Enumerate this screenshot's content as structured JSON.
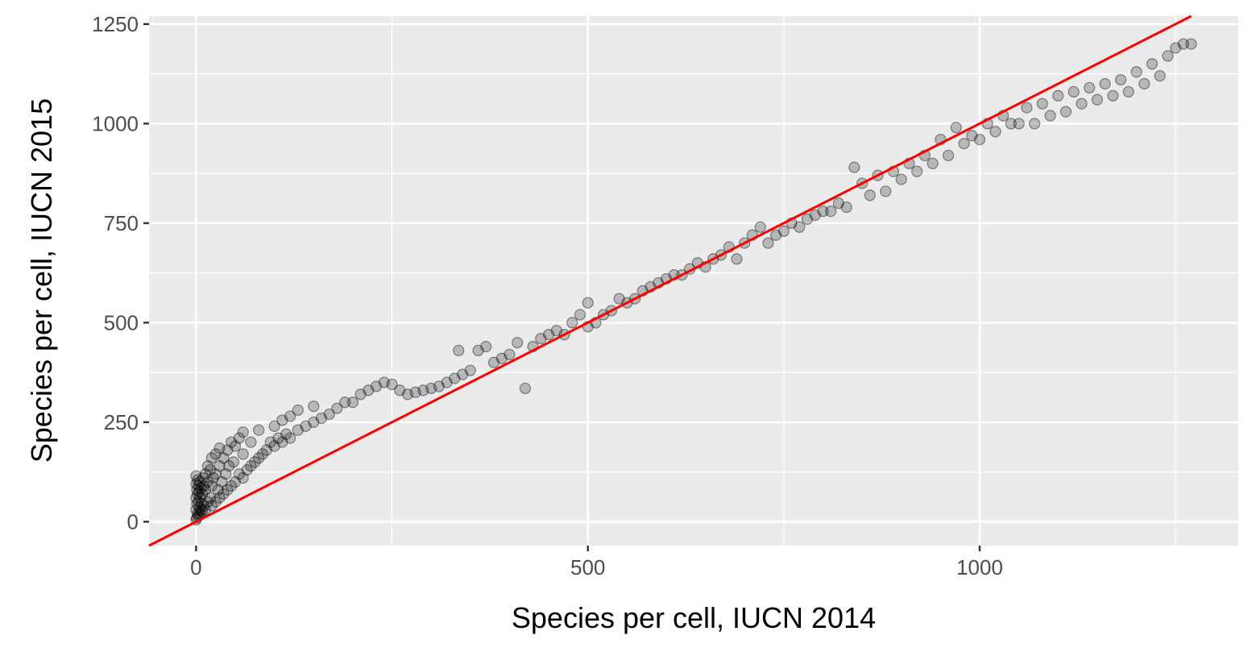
{
  "chart_data": {
    "type": "scatter",
    "title": "",
    "xlabel": "Species per cell, IUCN 2014",
    "ylabel": "Species per cell, IUCN 2015",
    "xlim": [
      -60,
      1330
    ],
    "ylim": [
      -60,
      1270
    ],
    "x_ticks": [
      0,
      500,
      1000
    ],
    "x_tick_labels": [
      "0",
      "500",
      "1000"
    ],
    "y_ticks": [
      0,
      250,
      500,
      750,
      1000,
      1250
    ],
    "y_tick_labels": [
      "0",
      "250",
      "500",
      "750",
      "1000",
      "1250"
    ],
    "grid": true,
    "legend": "none",
    "point_color": "#000000",
    "point_alpha": 0.22,
    "panel_background": "#ebebeb",
    "reference_line": {
      "type": "identity",
      "slope": 1,
      "intercept": 0,
      "color": "#ff0000"
    },
    "series": [
      {
        "points": [
          [
            0,
            5
          ],
          [
            0,
            30
          ],
          [
            0,
            60
          ],
          [
            0,
            95
          ],
          [
            0,
            115
          ],
          [
            1,
            10
          ],
          [
            1,
            45
          ],
          [
            1,
            80
          ],
          [
            2,
            20
          ],
          [
            2,
            70
          ],
          [
            2,
            105
          ],
          [
            3,
            15
          ],
          [
            3,
            50
          ],
          [
            3,
            90
          ],
          [
            4,
            35
          ],
          [
            4,
            75
          ],
          [
            5,
            20
          ],
          [
            5,
            60
          ],
          [
            5,
            100
          ],
          [
            6,
            30
          ],
          [
            6,
            85
          ],
          [
            7,
            45
          ],
          [
            8,
            25
          ],
          [
            8,
            70
          ],
          [
            9,
            110
          ],
          [
            10,
            40
          ],
          [
            10,
            90
          ],
          [
            12,
            30
          ],
          [
            12,
            80
          ],
          [
            12,
            120
          ],
          [
            15,
            50
          ],
          [
            15,
            100
          ],
          [
            15,
            140
          ],
          [
            18,
            60
          ],
          [
            18,
            130
          ],
          [
            20,
            40
          ],
          [
            20,
            90
          ],
          [
            20,
            160
          ],
          [
            22,
            110
          ],
          [
            25,
            50
          ],
          [
            25,
            120
          ],
          [
            25,
            170
          ],
          [
            28,
            80
          ],
          [
            30,
            60
          ],
          [
            30,
            140
          ],
          [
            30,
            185
          ],
          [
            33,
            100
          ],
          [
            35,
            70
          ],
          [
            35,
            160
          ],
          [
            38,
            120
          ],
          [
            40,
            80
          ],
          [
            40,
            180
          ],
          [
            42,
            140
          ],
          [
            45,
            90
          ],
          [
            45,
            200
          ],
          [
            48,
            150
          ],
          [
            50,
            100
          ],
          [
            50,
            190
          ],
          [
            55,
            120
          ],
          [
            55,
            210
          ],
          [
            60,
            110
          ],
          [
            60,
            170
          ],
          [
            60,
            225
          ],
          [
            65,
            130
          ],
          [
            70,
            140
          ],
          [
            70,
            200
          ],
          [
            75,
            150
          ],
          [
            80,
            160
          ],
          [
            80,
            230
          ],
          [
            85,
            170
          ],
          [
            90,
            180
          ],
          [
            95,
            200
          ],
          [
            100,
            190
          ],
          [
            100,
            240
          ],
          [
            105,
            210
          ],
          [
            110,
            200
          ],
          [
            110,
            255
          ],
          [
            115,
            220
          ],
          [
            120,
            210
          ],
          [
            120,
            265
          ],
          [
            130,
            230
          ],
          [
            130,
            280
          ],
          [
            140,
            240
          ],
          [
            150,
            250
          ],
          [
            150,
            290
          ],
          [
            160,
            260
          ],
          [
            170,
            270
          ],
          [
            180,
            285
          ],
          [
            190,
            300
          ],
          [
            200,
            300
          ],
          [
            210,
            320
          ],
          [
            220,
            330
          ],
          [
            230,
            340
          ],
          [
            240,
            350
          ],
          [
            250,
            345
          ],
          [
            260,
            330
          ],
          [
            270,
            320
          ],
          [
            280,
            325
          ],
          [
            290,
            330
          ],
          [
            300,
            335
          ],
          [
            310,
            340
          ],
          [
            320,
            350
          ],
          [
            330,
            360
          ],
          [
            335,
            430
          ],
          [
            340,
            370
          ],
          [
            350,
            380
          ],
          [
            360,
            430
          ],
          [
            370,
            440
          ],
          [
            380,
            400
          ],
          [
            390,
            410
          ],
          [
            400,
            420
          ],
          [
            410,
            450
          ],
          [
            420,
            335
          ],
          [
            430,
            440
          ],
          [
            440,
            460
          ],
          [
            450,
            470
          ],
          [
            460,
            480
          ],
          [
            470,
            470
          ],
          [
            480,
            500
          ],
          [
            490,
            520
          ],
          [
            500,
            490
          ],
          [
            500,
            550
          ],
          [
            510,
            500
          ],
          [
            520,
            520
          ],
          [
            530,
            530
          ],
          [
            540,
            560
          ],
          [
            550,
            550
          ],
          [
            560,
            560
          ],
          [
            570,
            580
          ],
          [
            580,
            590
          ],
          [
            590,
            600
          ],
          [
            600,
            610
          ],
          [
            610,
            620
          ],
          [
            620,
            620
          ],
          [
            630,
            635
          ],
          [
            640,
            650
          ],
          [
            650,
            640
          ],
          [
            660,
            660
          ],
          [
            670,
            670
          ],
          [
            680,
            690
          ],
          [
            690,
            660
          ],
          [
            700,
            700
          ],
          [
            710,
            720
          ],
          [
            720,
            740
          ],
          [
            730,
            700
          ],
          [
            740,
            720
          ],
          [
            750,
            730
          ],
          [
            760,
            750
          ],
          [
            770,
            740
          ],
          [
            780,
            760
          ],
          [
            790,
            770
          ],
          [
            800,
            780
          ],
          [
            810,
            780
          ],
          [
            820,
            800
          ],
          [
            830,
            790
          ],
          [
            840,
            890
          ],
          [
            850,
            850
          ],
          [
            860,
            820
          ],
          [
            870,
            870
          ],
          [
            880,
            830
          ],
          [
            890,
            880
          ],
          [
            900,
            860
          ],
          [
            910,
            900
          ],
          [
            920,
            880
          ],
          [
            930,
            920
          ],
          [
            940,
            900
          ],
          [
            950,
            960
          ],
          [
            960,
            920
          ],
          [
            970,
            990
          ],
          [
            980,
            950
          ],
          [
            990,
            970
          ],
          [
            1000,
            960
          ],
          [
            1010,
            1000
          ],
          [
            1020,
            980
          ],
          [
            1030,
            1020
          ],
          [
            1040,
            1000
          ],
          [
            1050,
            1000
          ],
          [
            1060,
            1040
          ],
          [
            1070,
            1000
          ],
          [
            1080,
            1050
          ],
          [
            1090,
            1020
          ],
          [
            1100,
            1070
          ],
          [
            1110,
            1030
          ],
          [
            1120,
            1080
          ],
          [
            1130,
            1050
          ],
          [
            1140,
            1090
          ],
          [
            1150,
            1060
          ],
          [
            1160,
            1100
          ],
          [
            1170,
            1070
          ],
          [
            1180,
            1110
          ],
          [
            1190,
            1080
          ],
          [
            1200,
            1130
          ],
          [
            1210,
            1100
          ],
          [
            1220,
            1150
          ],
          [
            1230,
            1120
          ],
          [
            1240,
            1170
          ],
          [
            1250,
            1190
          ],
          [
            1260,
            1200
          ],
          [
            1270,
            1200
          ]
        ]
      }
    ]
  }
}
